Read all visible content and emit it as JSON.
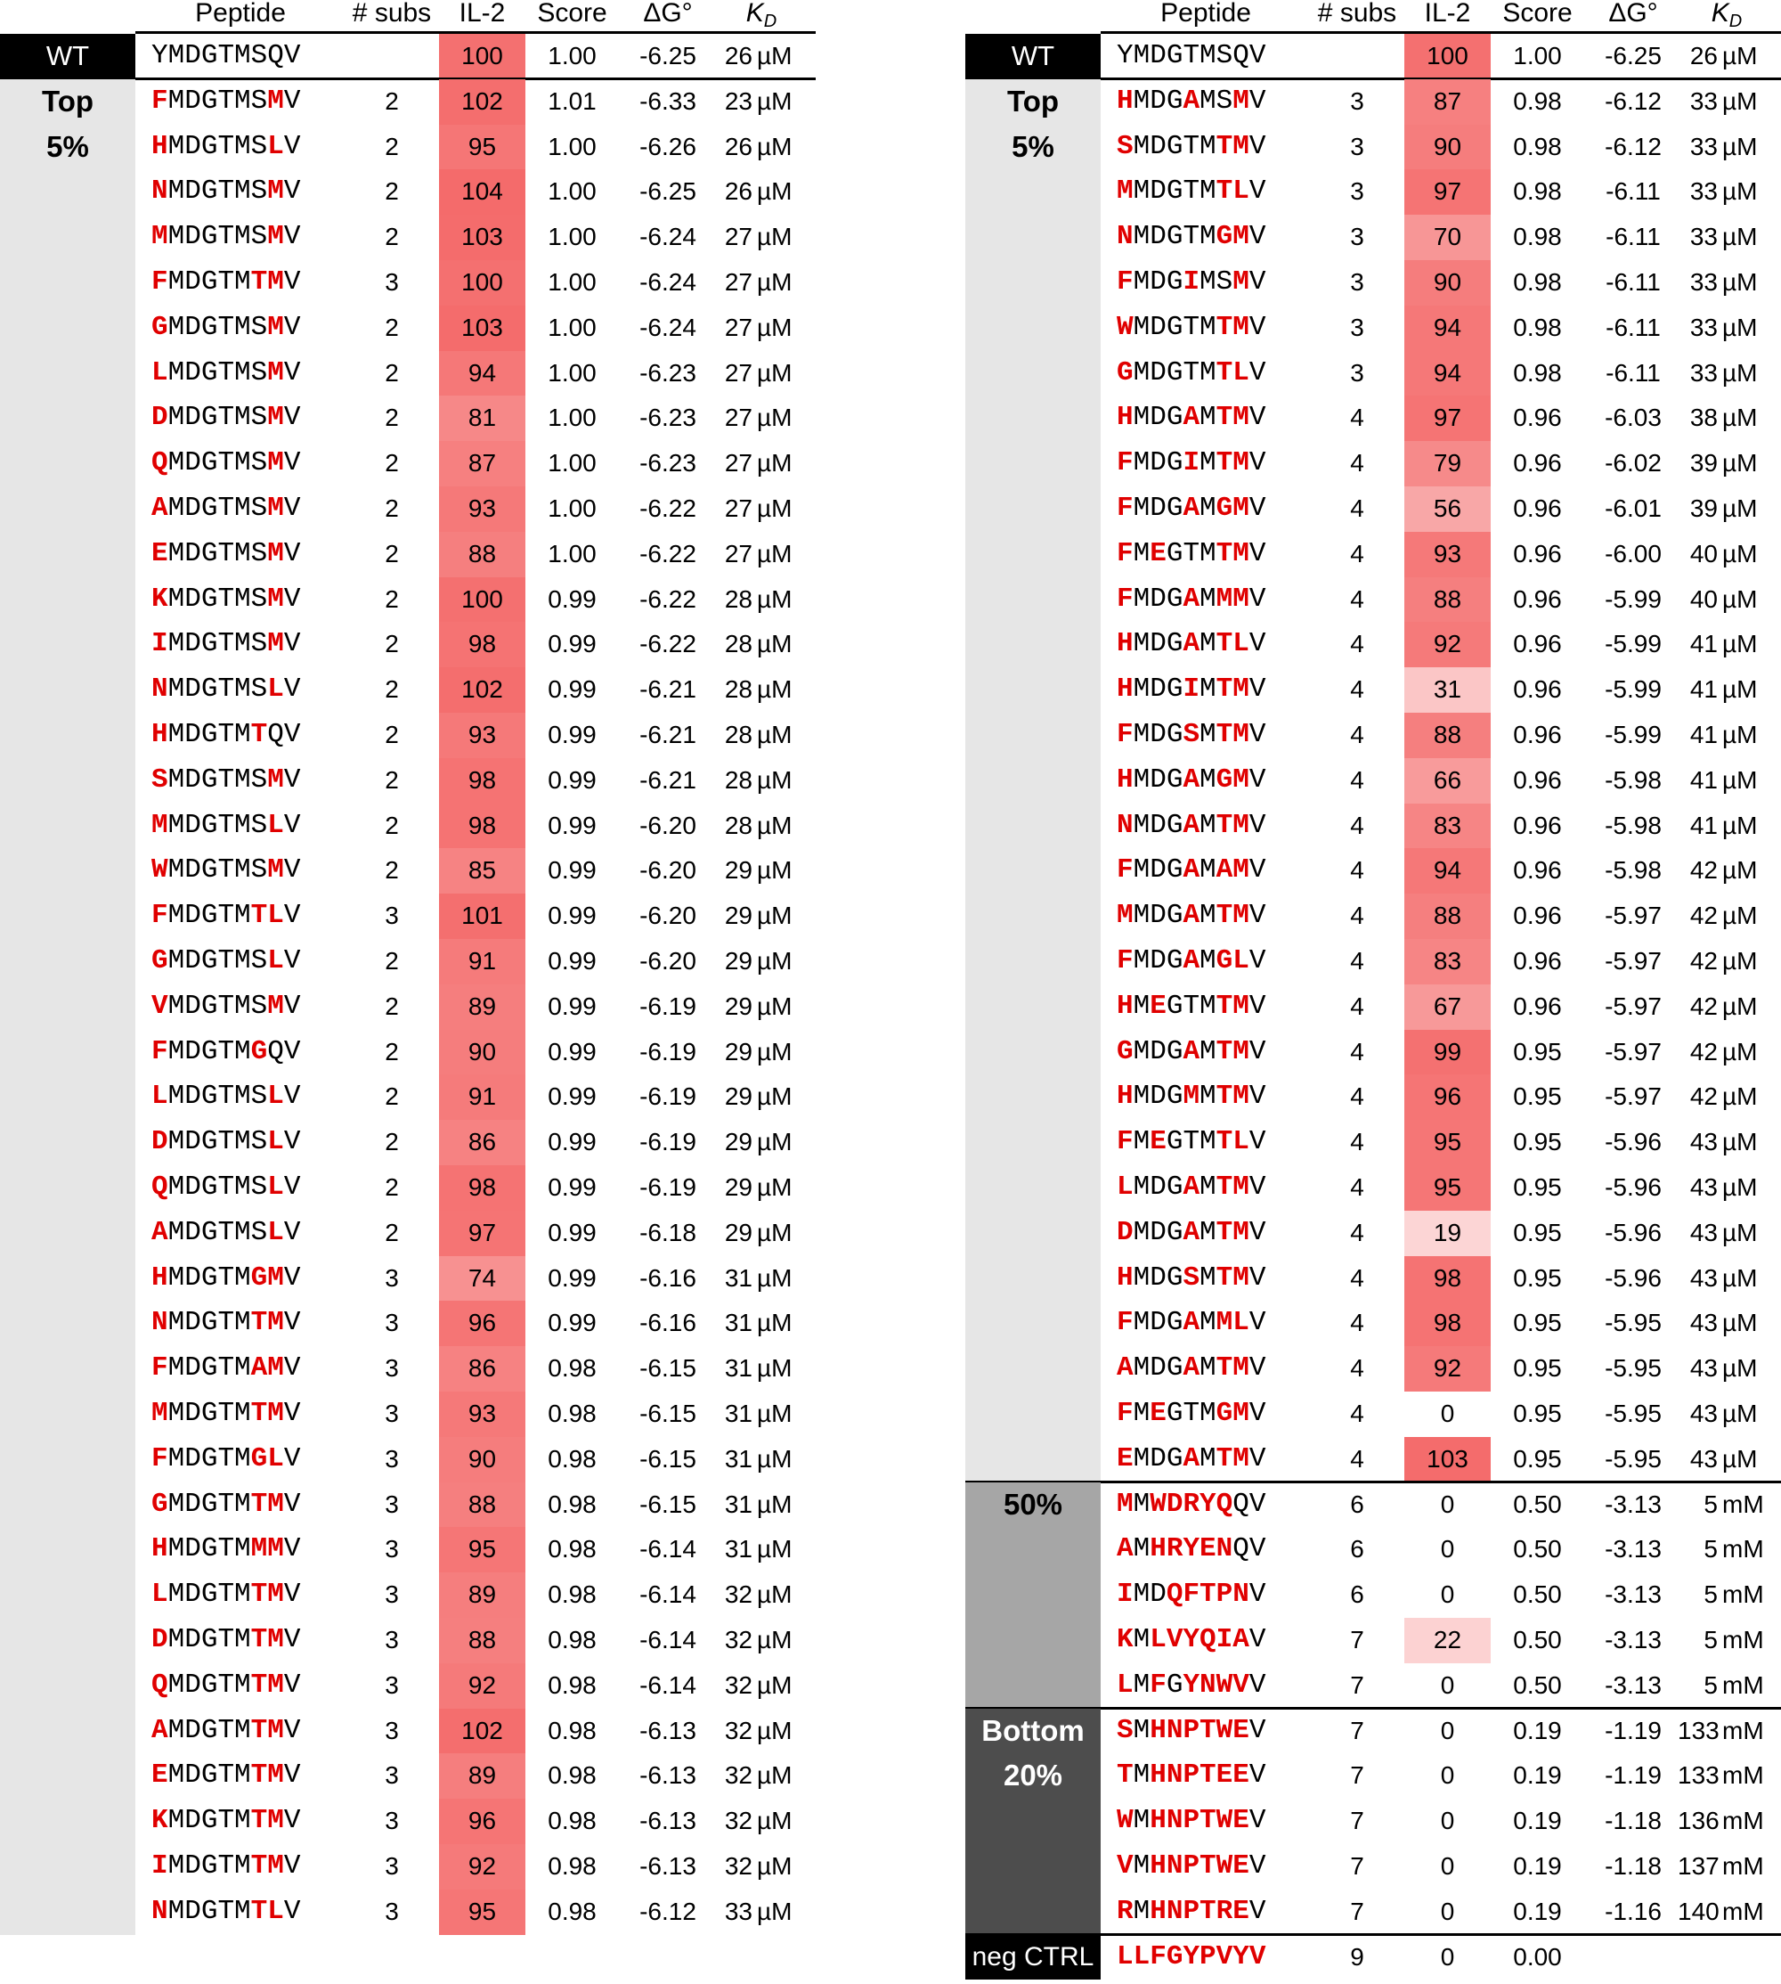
{
  "headers": {
    "peptide": "Peptide",
    "subs": "# subs",
    "il2": "IL-2",
    "score": "Score",
    "dg": "ΔG°",
    "kd": "K",
    "kd_sub": "D"
  },
  "groups": {
    "wt": "WT",
    "top_line1": "Top",
    "top_line2": "5%",
    "fifty": "50%",
    "bottom_line1": "Bottom",
    "bottom_line2": "20%",
    "neg": "neg CTRL"
  },
  "colors": {
    "mutation": "#e00000",
    "wt_bg": "#000000",
    "top_bg": "#e6e6e6",
    "fifty_bg": "#a6a6a6",
    "bottom_bg": "#4d4d4d",
    "neg_bg": "#000000",
    "il2_max": "#f46b6b"
  },
  "wt": {
    "peptide": "YMDGTMSQV",
    "mut": "000000000",
    "subs": "",
    "il2": "100",
    "score": "1.00",
    "dg": "-6.25",
    "kd": "26",
    "unit": "µM"
  },
  "left_rows": [
    {
      "peptide": "FMDGTMSMV",
      "mut": "100000010",
      "subs": "2",
      "il2": "102",
      "score": "1.01",
      "dg": "-6.33",
      "kd": "23",
      "unit": "µM"
    },
    {
      "peptide": "HMDGTMSLV",
      "mut": "100000010",
      "subs": "2",
      "il2": "95",
      "score": "1.00",
      "dg": "-6.26",
      "kd": "26",
      "unit": "µM"
    },
    {
      "peptide": "NMDGTMSMV",
      "mut": "100000010",
      "subs": "2",
      "il2": "104",
      "score": "1.00",
      "dg": "-6.25",
      "kd": "26",
      "unit": "µM"
    },
    {
      "peptide": "MMDGTMSMV",
      "mut": "100000010",
      "subs": "2",
      "il2": "103",
      "score": "1.00",
      "dg": "-6.24",
      "kd": "27",
      "unit": "µM"
    },
    {
      "peptide": "FMDGTMTMV",
      "mut": "100000110",
      "subs": "3",
      "il2": "100",
      "score": "1.00",
      "dg": "-6.24",
      "kd": "27",
      "unit": "µM"
    },
    {
      "peptide": "GMDGTMSMV",
      "mut": "100000010",
      "subs": "2",
      "il2": "103",
      "score": "1.00",
      "dg": "-6.24",
      "kd": "27",
      "unit": "µM"
    },
    {
      "peptide": "LMDGTMSMV",
      "mut": "100000010",
      "subs": "2",
      "il2": "94",
      "score": "1.00",
      "dg": "-6.23",
      "kd": "27",
      "unit": "µM"
    },
    {
      "peptide": "DMDGTMSMV",
      "mut": "100000010",
      "subs": "2",
      "il2": "81",
      "score": "1.00",
      "dg": "-6.23",
      "kd": "27",
      "unit": "µM"
    },
    {
      "peptide": "QMDGTMSMV",
      "mut": "100000010",
      "subs": "2",
      "il2": "87",
      "score": "1.00",
      "dg": "-6.23",
      "kd": "27",
      "unit": "µM"
    },
    {
      "peptide": "AMDGTMSMV",
      "mut": "100000010",
      "subs": "2",
      "il2": "93",
      "score": "1.00",
      "dg": "-6.22",
      "kd": "27",
      "unit": "µM"
    },
    {
      "peptide": "EMDGTMSMV",
      "mut": "100000010",
      "subs": "2",
      "il2": "88",
      "score": "1.00",
      "dg": "-6.22",
      "kd": "27",
      "unit": "µM"
    },
    {
      "peptide": "KMDGTMSMV",
      "mut": "100000010",
      "subs": "2",
      "il2": "100",
      "score": "0.99",
      "dg": "-6.22",
      "kd": "28",
      "unit": "µM"
    },
    {
      "peptide": "IMDGTMSMV",
      "mut": "100000010",
      "subs": "2",
      "il2": "98",
      "score": "0.99",
      "dg": "-6.22",
      "kd": "28",
      "unit": "µM"
    },
    {
      "peptide": "NMDGTMSLV",
      "mut": "100000010",
      "subs": "2",
      "il2": "102",
      "score": "0.99",
      "dg": "-6.21",
      "kd": "28",
      "unit": "µM"
    },
    {
      "peptide": "HMDGTMTQV",
      "mut": "100000100",
      "subs": "2",
      "il2": "93",
      "score": "0.99",
      "dg": "-6.21",
      "kd": "28",
      "unit": "µM"
    },
    {
      "peptide": "SMDGTMSMV",
      "mut": "100000010",
      "subs": "2",
      "il2": "98",
      "score": "0.99",
      "dg": "-6.21",
      "kd": "28",
      "unit": "µM"
    },
    {
      "peptide": "MMDGTMSLV",
      "mut": "100000010",
      "subs": "2",
      "il2": "98",
      "score": "0.99",
      "dg": "-6.20",
      "kd": "28",
      "unit": "µM"
    },
    {
      "peptide": "WMDGTMSMV",
      "mut": "100000010",
      "subs": "2",
      "il2": "85",
      "score": "0.99",
      "dg": "-6.20",
      "kd": "29",
      "unit": "µM"
    },
    {
      "peptide": "FMDGTMTLV",
      "mut": "100000110",
      "subs": "3",
      "il2": "101",
      "score": "0.99",
      "dg": "-6.20",
      "kd": "29",
      "unit": "µM"
    },
    {
      "peptide": "GMDGTMSLV",
      "mut": "100000010",
      "subs": "2",
      "il2": "91",
      "score": "0.99",
      "dg": "-6.20",
      "kd": "29",
      "unit": "µM"
    },
    {
      "peptide": "VMDGTMSMV",
      "mut": "100000010",
      "subs": "2",
      "il2": "89",
      "score": "0.99",
      "dg": "-6.19",
      "kd": "29",
      "unit": "µM"
    },
    {
      "peptide": "FMDGTMGQV",
      "mut": "100000100",
      "subs": "2",
      "il2": "90",
      "score": "0.99",
      "dg": "-6.19",
      "kd": "29",
      "unit": "µM"
    },
    {
      "peptide": "LMDGTMSLV",
      "mut": "100000010",
      "subs": "2",
      "il2": "91",
      "score": "0.99",
      "dg": "-6.19",
      "kd": "29",
      "unit": "µM"
    },
    {
      "peptide": "DMDGTMSLV",
      "mut": "100000010",
      "subs": "2",
      "il2": "86",
      "score": "0.99",
      "dg": "-6.19",
      "kd": "29",
      "unit": "µM"
    },
    {
      "peptide": "QMDGTMSLV",
      "mut": "100000010",
      "subs": "2",
      "il2": "98",
      "score": "0.99",
      "dg": "-6.19",
      "kd": "29",
      "unit": "µM"
    },
    {
      "peptide": "AMDGTMSLV",
      "mut": "100000010",
      "subs": "2",
      "il2": "97",
      "score": "0.99",
      "dg": "-6.18",
      "kd": "29",
      "unit": "µM"
    },
    {
      "peptide": "HMDGTMGMV",
      "mut": "100000110",
      "subs": "3",
      "il2": "74",
      "score": "0.99",
      "dg": "-6.16",
      "kd": "31",
      "unit": "µM"
    },
    {
      "peptide": "NMDGTMTMV",
      "mut": "100000110",
      "subs": "3",
      "il2": "96",
      "score": "0.99",
      "dg": "-6.16",
      "kd": "31",
      "unit": "µM"
    },
    {
      "peptide": "FMDGTMAMV",
      "mut": "100000110",
      "subs": "3",
      "il2": "86",
      "score": "0.98",
      "dg": "-6.15",
      "kd": "31",
      "unit": "µM"
    },
    {
      "peptide": "MMDGTMTMV",
      "mut": "100000110",
      "subs": "3",
      "il2": "93",
      "score": "0.98",
      "dg": "-6.15",
      "kd": "31",
      "unit": "µM"
    },
    {
      "peptide": "FMDGTMGLV",
      "mut": "100000110",
      "subs": "3",
      "il2": "90",
      "score": "0.98",
      "dg": "-6.15",
      "kd": "31",
      "unit": "µM"
    },
    {
      "peptide": "GMDGTMTMV",
      "mut": "100000110",
      "subs": "3",
      "il2": "88",
      "score": "0.98",
      "dg": "-6.15",
      "kd": "31",
      "unit": "µM"
    },
    {
      "peptide": "HMDGTMMMV",
      "mut": "100000110",
      "subs": "3",
      "il2": "95",
      "score": "0.98",
      "dg": "-6.14",
      "kd": "31",
      "unit": "µM"
    },
    {
      "peptide": "LMDGTMTMV",
      "mut": "100000110",
      "subs": "3",
      "il2": "89",
      "score": "0.98",
      "dg": "-6.14",
      "kd": "32",
      "unit": "µM"
    },
    {
      "peptide": "DMDGTMTMV",
      "mut": "100000110",
      "subs": "3",
      "il2": "88",
      "score": "0.98",
      "dg": "-6.14",
      "kd": "32",
      "unit": "µM"
    },
    {
      "peptide": "QMDGTMTMV",
      "mut": "100000110",
      "subs": "3",
      "il2": "92",
      "score": "0.98",
      "dg": "-6.14",
      "kd": "32",
      "unit": "µM"
    },
    {
      "peptide": "AMDGTMTMV",
      "mut": "100000110",
      "subs": "3",
      "il2": "102",
      "score": "0.98",
      "dg": "-6.13",
      "kd": "32",
      "unit": "µM"
    },
    {
      "peptide": "EMDGTMTMV",
      "mut": "100000110",
      "subs": "3",
      "il2": "89",
      "score": "0.98",
      "dg": "-6.13",
      "kd": "32",
      "unit": "µM"
    },
    {
      "peptide": "KMDGTMTMV",
      "mut": "100000110",
      "subs": "3",
      "il2": "96",
      "score": "0.98",
      "dg": "-6.13",
      "kd": "32",
      "unit": "µM"
    },
    {
      "peptide": "IMDGTMTMV",
      "mut": "100000110",
      "subs": "3",
      "il2": "92",
      "score": "0.98",
      "dg": "-6.13",
      "kd": "32",
      "unit": "µM"
    },
    {
      "peptide": "NMDGTMTLV",
      "mut": "100000110",
      "subs": "3",
      "il2": "95",
      "score": "0.98",
      "dg": "-6.12",
      "kd": "33",
      "unit": "µM"
    }
  ],
  "right_top_rows": [
    {
      "peptide": "HMDGAMSMV",
      "mut": "100010010",
      "subs": "3",
      "il2": "87",
      "score": "0.98",
      "dg": "-6.12",
      "kd": "33",
      "unit": "µM"
    },
    {
      "peptide": "SMDGTMTMV",
      "mut": "100000110",
      "subs": "3",
      "il2": "90",
      "score": "0.98",
      "dg": "-6.12",
      "kd": "33",
      "unit": "µM"
    },
    {
      "peptide": "MMDGTMTLV",
      "mut": "100000110",
      "subs": "3",
      "il2": "97",
      "score": "0.98",
      "dg": "-6.11",
      "kd": "33",
      "unit": "µM"
    },
    {
      "peptide": "NMDGTMGMV",
      "mut": "100000110",
      "subs": "3",
      "il2": "70",
      "score": "0.98",
      "dg": "-6.11",
      "kd": "33",
      "unit": "µM"
    },
    {
      "peptide": "FMDGIMSMV",
      "mut": "100010010",
      "subs": "3",
      "il2": "90",
      "score": "0.98",
      "dg": "-6.11",
      "kd": "33",
      "unit": "µM"
    },
    {
      "peptide": "WMDGTMTMV",
      "mut": "100000110",
      "subs": "3",
      "il2": "94",
      "score": "0.98",
      "dg": "-6.11",
      "kd": "33",
      "unit": "µM"
    },
    {
      "peptide": "GMDGTMTLV",
      "mut": "100000110",
      "subs": "3",
      "il2": "94",
      "score": "0.98",
      "dg": "-6.11",
      "kd": "33",
      "unit": "µM"
    },
    {
      "peptide": "HMDGAMTMV",
      "mut": "100010110",
      "subs": "4",
      "il2": "97",
      "score": "0.96",
      "dg": "-6.03",
      "kd": "38",
      "unit": "µM"
    },
    {
      "peptide": "FMDGIMTMV",
      "mut": "100010110",
      "subs": "4",
      "il2": "79",
      "score": "0.96",
      "dg": "-6.02",
      "kd": "39",
      "unit": "µM"
    },
    {
      "peptide": "FMDGAMGMV",
      "mut": "100010110",
      "subs": "4",
      "il2": "56",
      "score": "0.96",
      "dg": "-6.01",
      "kd": "39",
      "unit": "µM"
    },
    {
      "peptide": "FMEGTMTMV",
      "mut": "101000110",
      "subs": "4",
      "il2": "93",
      "score": "0.96",
      "dg": "-6.00",
      "kd": "40",
      "unit": "µM"
    },
    {
      "peptide": "FMDGAMMMV",
      "mut": "100010110",
      "subs": "4",
      "il2": "88",
      "score": "0.96",
      "dg": "-5.99",
      "kd": "40",
      "unit": "µM"
    },
    {
      "peptide": "HMDGAMTLV",
      "mut": "100010110",
      "subs": "4",
      "il2": "92",
      "score": "0.96",
      "dg": "-5.99",
      "kd": "41",
      "unit": "µM"
    },
    {
      "peptide": "HMDGIMTMV",
      "mut": "100010110",
      "subs": "4",
      "il2": "31",
      "score": "0.96",
      "dg": "-5.99",
      "kd": "41",
      "unit": "µM"
    },
    {
      "peptide": "FMDGSMTMV",
      "mut": "100010110",
      "subs": "4",
      "il2": "88",
      "score": "0.96",
      "dg": "-5.99",
      "kd": "41",
      "unit": "µM"
    },
    {
      "peptide": "HMDGAMGMV",
      "mut": "100010110",
      "subs": "4",
      "il2": "66",
      "score": "0.96",
      "dg": "-5.98",
      "kd": "41",
      "unit": "µM"
    },
    {
      "peptide": "NMDGAMTMV",
      "mut": "100010110",
      "subs": "4",
      "il2": "83",
      "score": "0.96",
      "dg": "-5.98",
      "kd": "41",
      "unit": "µM"
    },
    {
      "peptide": "FMDGAMAMV",
      "mut": "100010110",
      "subs": "4",
      "il2": "94",
      "score": "0.96",
      "dg": "-5.98",
      "kd": "42",
      "unit": "µM"
    },
    {
      "peptide": "MMDGAMTMV",
      "mut": "100010110",
      "subs": "4",
      "il2": "88",
      "score": "0.96",
      "dg": "-5.97",
      "kd": "42",
      "unit": "µM"
    },
    {
      "peptide": "FMDGAMGLV",
      "mut": "100010110",
      "subs": "4",
      "il2": "83",
      "score": "0.96",
      "dg": "-5.97",
      "kd": "42",
      "unit": "µM"
    },
    {
      "peptide": "HMEGTMTMV",
      "mut": "101000110",
      "subs": "4",
      "il2": "67",
      "score": "0.96",
      "dg": "-5.97",
      "kd": "42",
      "unit": "µM"
    },
    {
      "peptide": "GMDGAMTMV",
      "mut": "100010110",
      "subs": "4",
      "il2": "99",
      "score": "0.95",
      "dg": "-5.97",
      "kd": "42",
      "unit": "µM"
    },
    {
      "peptide": "HMDGMMTMV",
      "mut": "100010110",
      "subs": "4",
      "il2": "96",
      "score": "0.95",
      "dg": "-5.97",
      "kd": "42",
      "unit": "µM"
    },
    {
      "peptide": "FMEGTMTLV",
      "mut": "101000110",
      "subs": "4",
      "il2": "95",
      "score": "0.95",
      "dg": "-5.96",
      "kd": "43",
      "unit": "µM"
    },
    {
      "peptide": "LMDGAMTMV",
      "mut": "100010110",
      "subs": "4",
      "il2": "95",
      "score": "0.95",
      "dg": "-5.96",
      "kd": "43",
      "unit": "µM"
    },
    {
      "peptide": "DMDGAMTMV",
      "mut": "100010110",
      "subs": "4",
      "il2": "19",
      "score": "0.95",
      "dg": "-5.96",
      "kd": "43",
      "unit": "µM"
    },
    {
      "peptide": "HMDGSMTMV",
      "mut": "100010110",
      "subs": "4",
      "il2": "98",
      "score": "0.95",
      "dg": "-5.96",
      "kd": "43",
      "unit": "µM"
    },
    {
      "peptide": "FMDGAMMLV",
      "mut": "100010110",
      "subs": "4",
      "il2": "98",
      "score": "0.95",
      "dg": "-5.95",
      "kd": "43",
      "unit": "µM"
    },
    {
      "peptide": "AMDGAMTMV",
      "mut": "100010110",
      "subs": "4",
      "il2": "92",
      "score": "0.95",
      "dg": "-5.95",
      "kd": "43",
      "unit": "µM"
    },
    {
      "peptide": "FMEGTMGMV",
      "mut": "101000110",
      "subs": "4",
      "il2": "0",
      "score": "0.95",
      "dg": "-5.95",
      "kd": "43",
      "unit": "µM"
    },
    {
      "peptide": "EMDGAMTMV",
      "mut": "100010110",
      "subs": "4",
      "il2": "103",
      "score": "0.95",
      "dg": "-5.95",
      "kd": "43",
      "unit": "µM"
    }
  ],
  "right_fifty_rows": [
    {
      "peptide": "MMWDRYQQV",
      "mut": "101111100",
      "subs": "6",
      "il2": "0",
      "score": "0.50",
      "dg": "-3.13",
      "kd": "5",
      "unit": "mM"
    },
    {
      "peptide": "AMHRYENQV",
      "mut": "101111100",
      "subs": "6",
      "il2": "0",
      "score": "0.50",
      "dg": "-3.13",
      "kd": "5",
      "unit": "mM"
    },
    {
      "peptide": "IMDQFTPNV",
      "mut": "100111110",
      "subs": "6",
      "il2": "0",
      "score": "0.50",
      "dg": "-3.13",
      "kd": "5",
      "unit": "mM"
    },
    {
      "peptide": "KMLVYQIAV",
      "mut": "101111110",
      "subs": "7",
      "il2": "22",
      "score": "0.50",
      "dg": "-3.13",
      "kd": "5",
      "unit": "mM"
    },
    {
      "peptide": "LMFGYNWVV",
      "mut": "101011110",
      "subs": "7",
      "il2": "0",
      "score": "0.50",
      "dg": "-3.13",
      "kd": "5",
      "unit": "mM"
    }
  ],
  "right_bottom_rows": [
    {
      "peptide": "SMHNPTWEV",
      "mut": "101111110",
      "subs": "7",
      "il2": "0",
      "score": "0.19",
      "dg": "-1.19",
      "kd": "133",
      "unit": "mM"
    },
    {
      "peptide": "TMHNPTEEV",
      "mut": "101111110",
      "subs": "7",
      "il2": "0",
      "score": "0.19",
      "dg": "-1.19",
      "kd": "133",
      "unit": "mM"
    },
    {
      "peptide": "WMHNPTWEV",
      "mut": "101111110",
      "subs": "7",
      "il2": "0",
      "score": "0.19",
      "dg": "-1.18",
      "kd": "136",
      "unit": "mM"
    },
    {
      "peptide": "VMHNPTWEV",
      "mut": "101111110",
      "subs": "7",
      "il2": "0",
      "score": "0.19",
      "dg": "-1.18",
      "kd": "137",
      "unit": "mM"
    },
    {
      "peptide": "RMHNPTREV",
      "mut": "101111110",
      "subs": "7",
      "il2": "0",
      "score": "0.19",
      "dg": "-1.16",
      "kd": "140",
      "unit": "mM"
    }
  ],
  "neg_row": {
    "peptide": "LLFGYPVYV",
    "mut": "111111111",
    "subs": "9",
    "il2": "0",
    "score": "0.00",
    "dg": "",
    "kd": "",
    "unit": ""
  }
}
